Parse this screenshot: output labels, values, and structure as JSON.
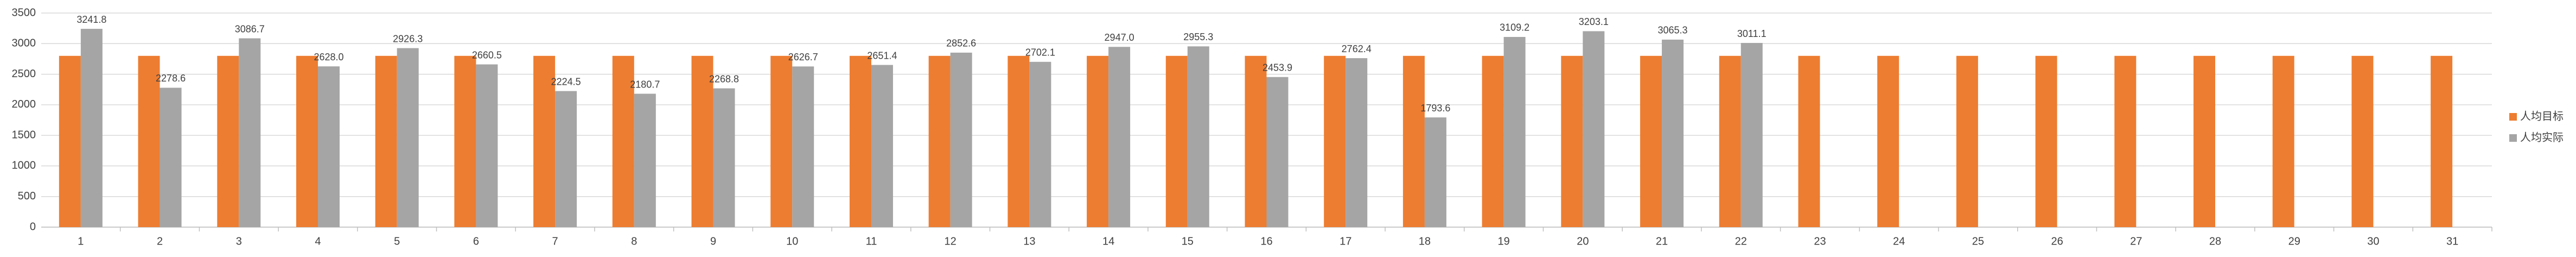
{
  "chart_data": {
    "type": "bar",
    "categories": [
      "1",
      "2",
      "3",
      "4",
      "5",
      "6",
      "7",
      "8",
      "9",
      "10",
      "11",
      "12",
      "13",
      "14",
      "15",
      "16",
      "17",
      "18",
      "19",
      "20",
      "21",
      "22",
      "23",
      "24",
      "25",
      "26",
      "27",
      "28",
      "29",
      "30",
      "31"
    ],
    "series": [
      {
        "name": "人均目标",
        "color": "#ed7d31",
        "values": [
          2800,
          2800,
          2800,
          2800,
          2800,
          2800,
          2800,
          2800,
          2800,
          2800,
          2800,
          2800,
          2800,
          2800,
          2800,
          2800,
          2800,
          2800,
          2800,
          2800,
          2800,
          2800,
          2800,
          2800,
          2800,
          2800,
          2800,
          2800,
          2800,
          2800,
          2800
        ]
      },
      {
        "name": "人均实际",
        "color": "#a5a5a5",
        "values": [
          3241.8,
          2278.6,
          3086.7,
          2628.0,
          2926.3,
          2660.5,
          2224.5,
          2180.7,
          2268.8,
          2626.7,
          2651.4,
          2852.6,
          2702.1,
          2947.0,
          2955.3,
          2453.9,
          2762.4,
          1793.6,
          3109.2,
          3203.1,
          3065.3,
          3011.1,
          null,
          null,
          null,
          null,
          null,
          null,
          null,
          null,
          null
        ],
        "value_labels": [
          "3241.8",
          "2278.6",
          "3086.7",
          "2628.0",
          "2926.3",
          "2660.5",
          "2224.5",
          "2180.7",
          "2268.8",
          "2626.7",
          "2651.4",
          "2852.6",
          "2702.1",
          "2947.0",
          "2955.3",
          "2453.9",
          "2762.4",
          "1793.6",
          "3109.2",
          "3203.1",
          "3065.3",
          "3011.1",
          null,
          null,
          null,
          null,
          null,
          null,
          null,
          null,
          null
        ]
      }
    ],
    "ylim": [
      0,
      3500
    ],
    "yticks": [
      0,
      500,
      1000,
      1500,
      2000,
      2500,
      3000,
      3500
    ],
    "grid": true,
    "legend": "right"
  }
}
